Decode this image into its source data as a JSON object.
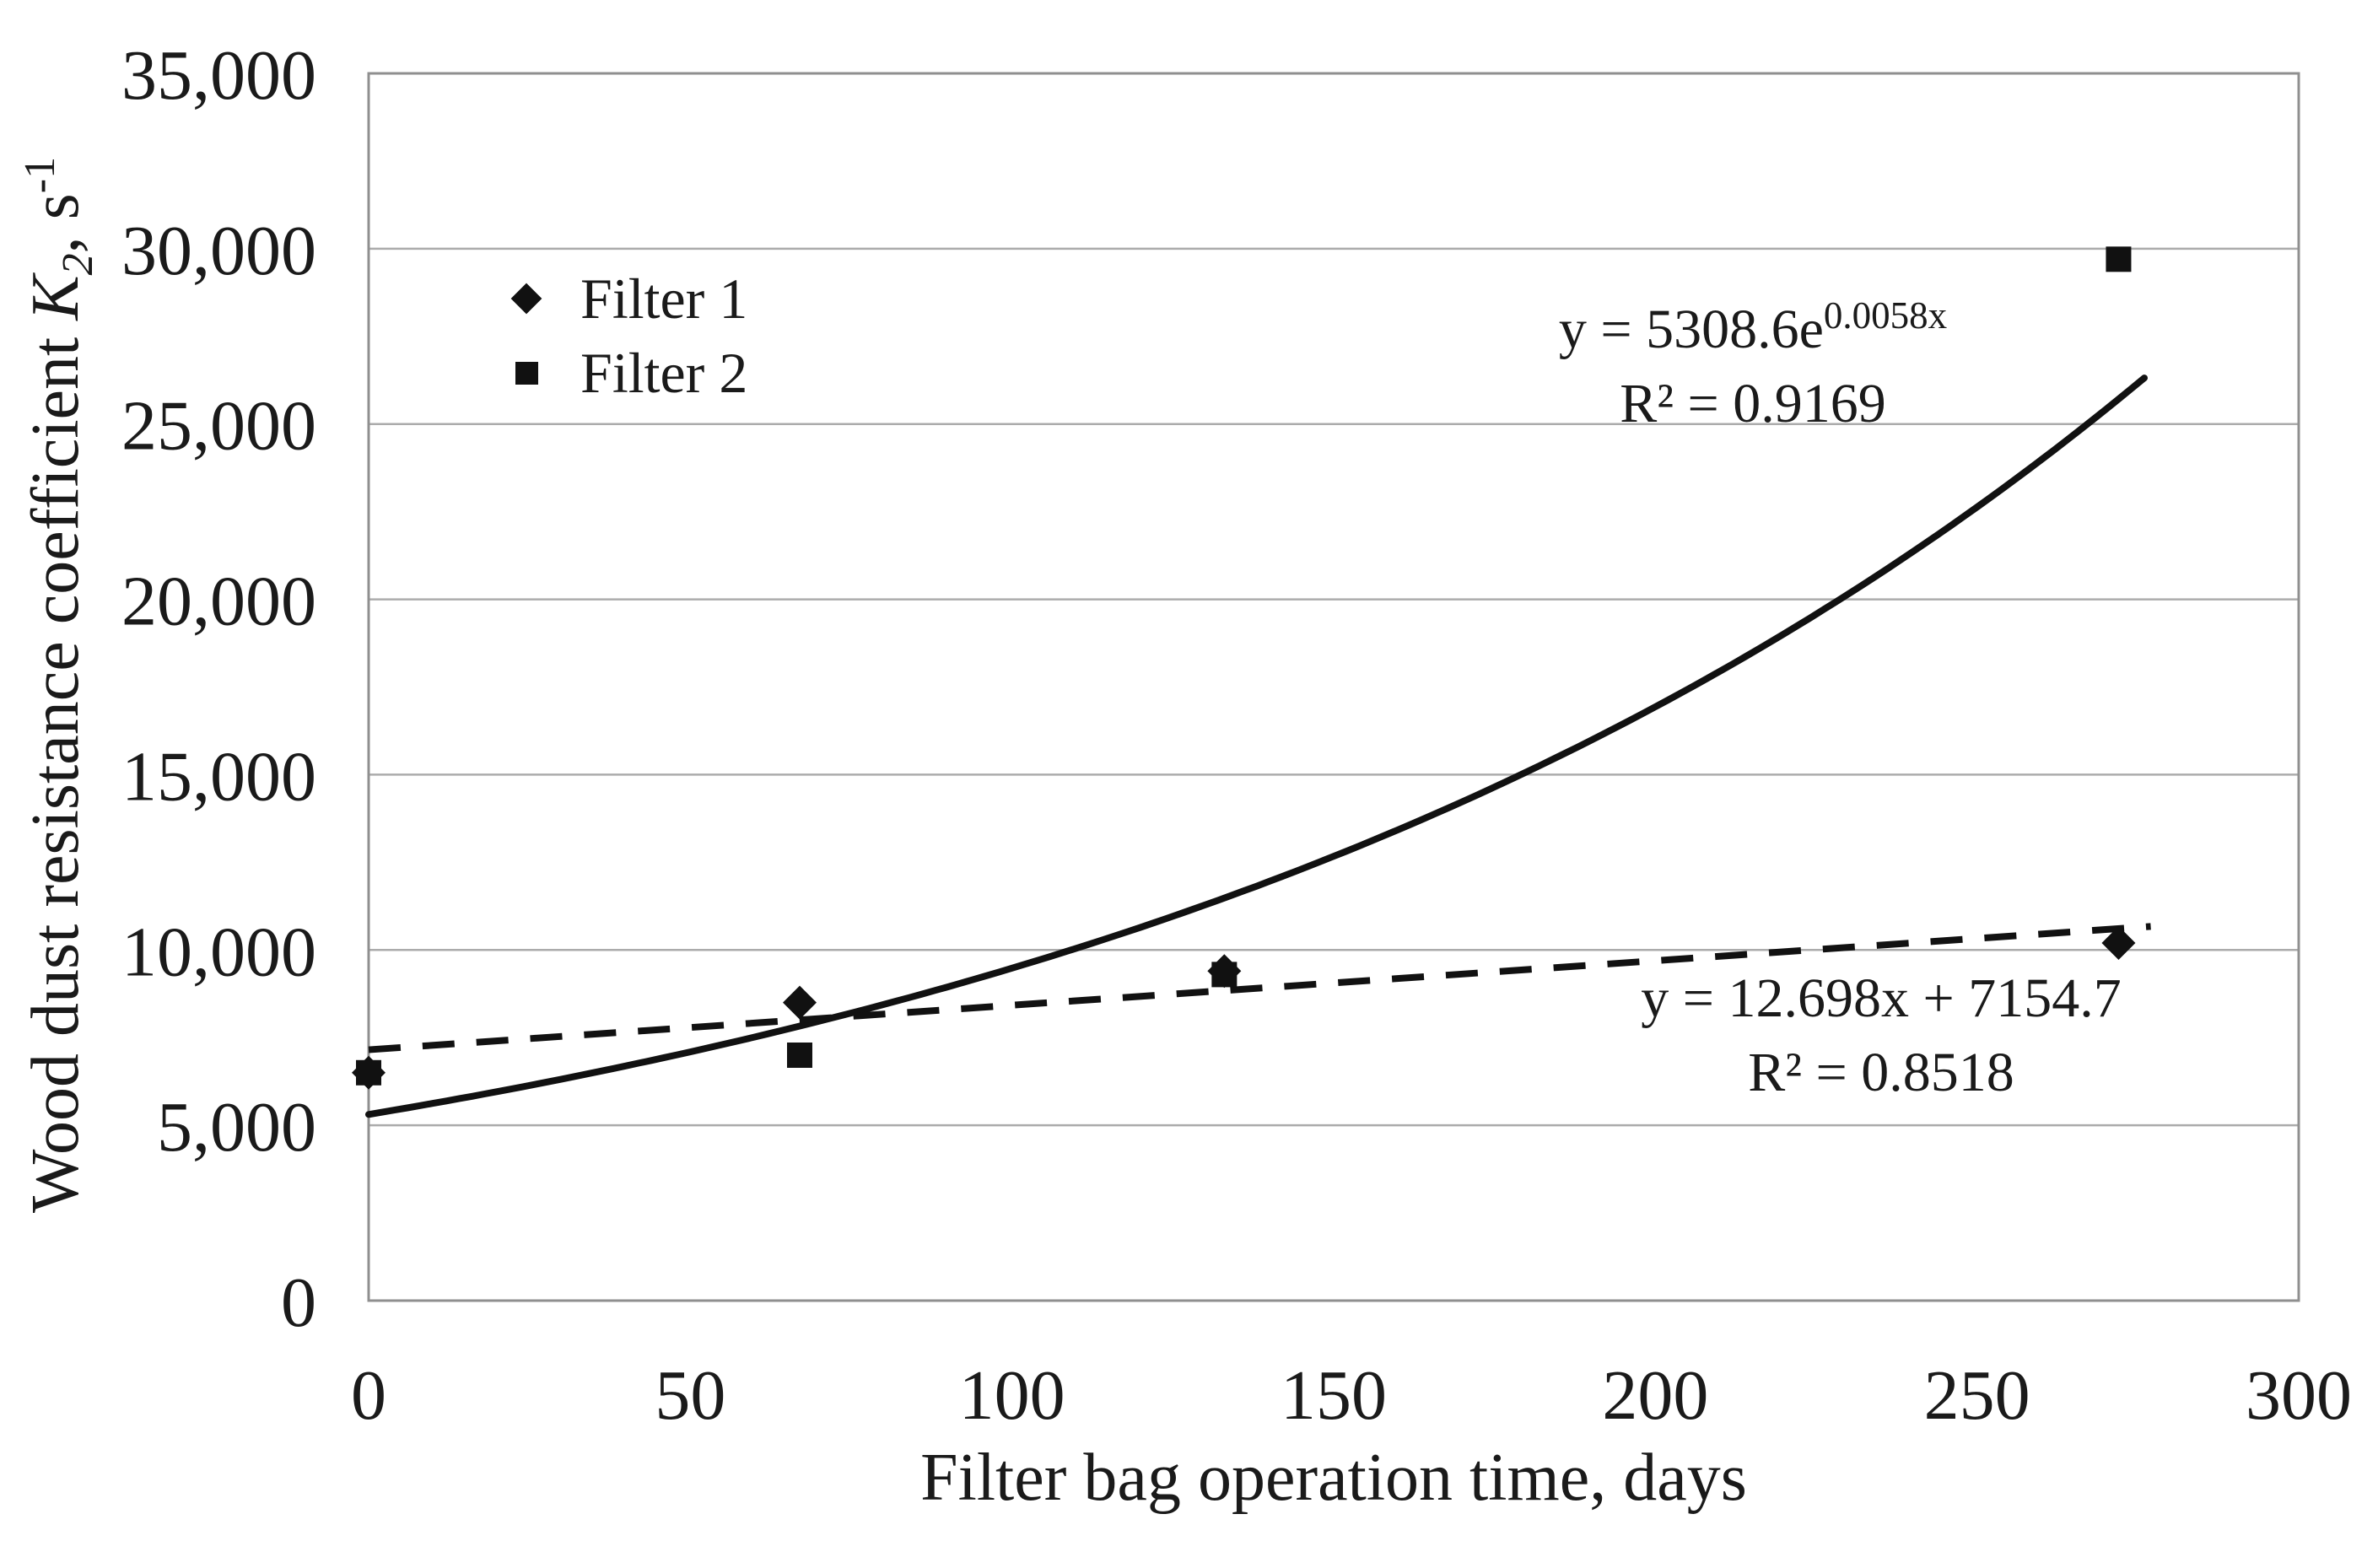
{
  "chart_data": {
    "type": "scatter",
    "title": "",
    "xlabel": "Filter bag operation time, days",
    "ylabel": "Wood dust resistance coefficient K₂, s⁻¹",
    "ylabel_parts": {
      "prefix": "Wood dust resistance coefficient ",
      "k_symbol": "K",
      "k_subscript": "2",
      "mid": ", s",
      "superscript": "-1"
    },
    "xlim": [
      0,
      300
    ],
    "ylim": [
      0,
      35000
    ],
    "x_ticks": {
      "values": [
        0,
        50,
        100,
        150,
        200,
        250,
        300
      ],
      "labels": [
        "0",
        "50",
        "100",
        "150",
        "200",
        "250",
        "300"
      ]
    },
    "y_ticks": {
      "values": [
        0,
        5000,
        10000,
        15000,
        20000,
        25000,
        30000,
        35000
      ],
      "labels": [
        "0",
        "5,000",
        "10,000",
        "15,000",
        "20,000",
        "25,000",
        "30,000",
        "35,000"
      ]
    },
    "grid": "horizontal gridlines only",
    "legend": {
      "position": "inside upper-left",
      "entries": [
        "Filter 1",
        "Filter 2"
      ]
    },
    "series": [
      {
        "name": "Filter 1",
        "marker": "diamond",
        "x": [
          0,
          67,
          133,
          272
        ],
        "y": [
          6500,
          8500,
          9400,
          10200
        ],
        "trendline": {
          "type": "linear",
          "slope": 12.698,
          "intercept": 7154.7,
          "line_style": "dashed",
          "x_range": [
            0,
            277
          ]
        },
        "equation": "y = 12.698x + 7154.7",
        "r2_label": "R² = 0.8518"
      },
      {
        "name": "Filter 2",
        "marker": "square",
        "x": [
          0,
          67,
          133,
          272
        ],
        "y": [
          6500,
          7000,
          9300,
          29700
        ],
        "trendline": {
          "type": "exponential",
          "coefficient": 5308.6,
          "exponent_rate": 0.0058,
          "line_style": "solid",
          "x_range": [
            0,
            276
          ]
        },
        "equation": "y = 5308.6e^(0.0058x)",
        "equation_base": "y = 5308.6e",
        "equation_exponent": "0.0058x",
        "r2_label": "R² = 0.9169"
      }
    ],
    "colors": {
      "foreground": "#1a1a1a",
      "marker": "#111111",
      "gridline": "#ababab",
      "axis_border": "#8f8f8f",
      "background": "#ffffff"
    }
  }
}
